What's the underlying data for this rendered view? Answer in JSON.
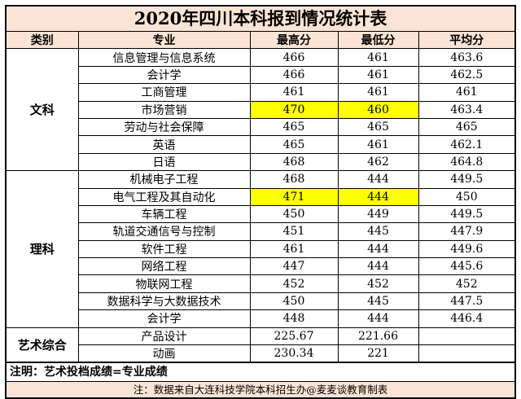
{
  "title": "2020年四川本科报到情况统计表",
  "headers": {
    "category": "类别",
    "major": "专业",
    "max": "最高分",
    "min": "最低分",
    "avg": "平均分"
  },
  "groups": [
    {
      "name": "文科",
      "rows": [
        {
          "major": "信息管理与信息系统",
          "max": "466",
          "min": "461",
          "avg": "463.6",
          "highlight": false
        },
        {
          "major": "会计学",
          "max": "466",
          "min": "461",
          "avg": "462.5",
          "highlight": false
        },
        {
          "major": "工商管理",
          "max": "461",
          "min": "461",
          "avg": "461",
          "highlight": false
        },
        {
          "major": "市场营销",
          "max": "470",
          "min": "460",
          "avg": "463.4",
          "highlight": true
        },
        {
          "major": "劳动与社会保障",
          "max": "465",
          "min": "465",
          "avg": "465",
          "highlight": false
        },
        {
          "major": "英语",
          "max": "465",
          "min": "461",
          "avg": "462.1",
          "highlight": false
        },
        {
          "major": "日语",
          "max": "468",
          "min": "462",
          "avg": "464.8",
          "highlight": false
        }
      ]
    },
    {
      "name": "理科",
      "rows": [
        {
          "major": "机械电子工程",
          "max": "468",
          "min": "444",
          "avg": "449.5",
          "highlight": false
        },
        {
          "major": "电气工程及其自动化",
          "max": "471",
          "min": "444",
          "avg": "450",
          "highlight": true
        },
        {
          "major": "车辆工程",
          "max": "450",
          "min": "449",
          "avg": "449.5",
          "highlight": false
        },
        {
          "major": "轨道交通信号与控制",
          "max": "451",
          "min": "445",
          "avg": "447.9",
          "highlight": false
        },
        {
          "major": "软件工程",
          "max": "461",
          "min": "444",
          "avg": "449.6",
          "highlight": false
        },
        {
          "major": "网络工程",
          "max": "447",
          "min": "444",
          "avg": "445.6",
          "highlight": false
        },
        {
          "major": "物联网工程",
          "max": "452",
          "min": "452",
          "avg": "452",
          "highlight": false
        },
        {
          "major": "数据科学与大数据技术",
          "max": "450",
          "min": "445",
          "avg": "447.5",
          "highlight": false
        },
        {
          "major": "会计学",
          "max": "448",
          "min": "444",
          "avg": "446.4",
          "highlight": false
        }
      ]
    },
    {
      "name": "艺术综合",
      "rows": [
        {
          "major": "产品设计",
          "max": "225.67",
          "min": "221.66",
          "avg": "",
          "highlight": false
        },
        {
          "major": "动画",
          "max": "230.34",
          "min": "221",
          "avg": "",
          "highlight": false
        }
      ]
    }
  ],
  "note": "注明：艺术投档成绩=专业成绩",
  "footer": "注：数据来自大连科技学院本科招生办@麦麦谈教育制表",
  "colors": {
    "header_bg": "#fbe4d5",
    "highlight": "#ffff00"
  }
}
